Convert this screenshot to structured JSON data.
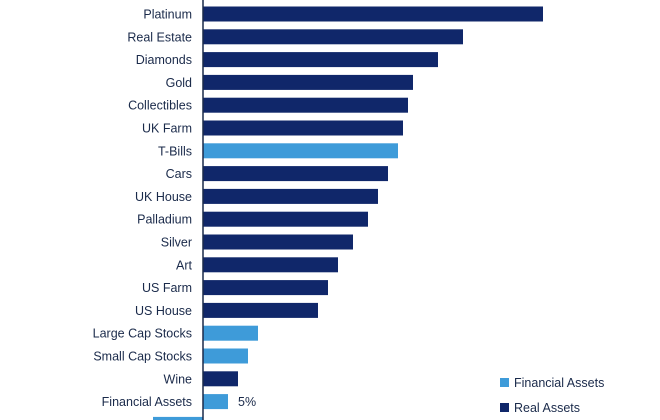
{
  "chart_data": {
    "type": "bar",
    "orientation": "horizontal",
    "title": "",
    "xlabel": "",
    "ylabel": "",
    "xlim": [
      -12,
      70
    ],
    "categories": [
      "Platinum",
      "Real Estate",
      "Diamonds",
      "Gold",
      "Collectibles",
      "UK Farm",
      "T-Bills",
      "Cars",
      "UK House",
      "Palladium",
      "Silver",
      "Art",
      "US Farm",
      "US House",
      "Large Cap Stocks",
      "Small Cap Stocks",
      "Wine",
      "Financial Assets",
      ""
    ],
    "values": [
      68,
      52,
      47,
      42,
      41,
      40,
      39,
      37,
      35,
      33,
      30,
      27,
      25,
      23,
      11,
      9,
      7,
      5,
      -10
    ],
    "groups": [
      "real",
      "real",
      "real",
      "real",
      "real",
      "real",
      "financial",
      "real",
      "real",
      "real",
      "real",
      "real",
      "real",
      "real",
      "financial",
      "financial",
      "real",
      "financial",
      "financial"
    ],
    "data_labels": {
      "Financial Assets": "5%"
    },
    "legend": {
      "position": "bottom-right",
      "entries": [
        {
          "key": "financial",
          "label": "Financial Assets"
        },
        {
          "key": "real",
          "label": "Real Assets"
        }
      ]
    },
    "colors": {
      "real": "#10276a",
      "financial": "#3e9bd9",
      "axis": "#1a2a4a"
    }
  }
}
